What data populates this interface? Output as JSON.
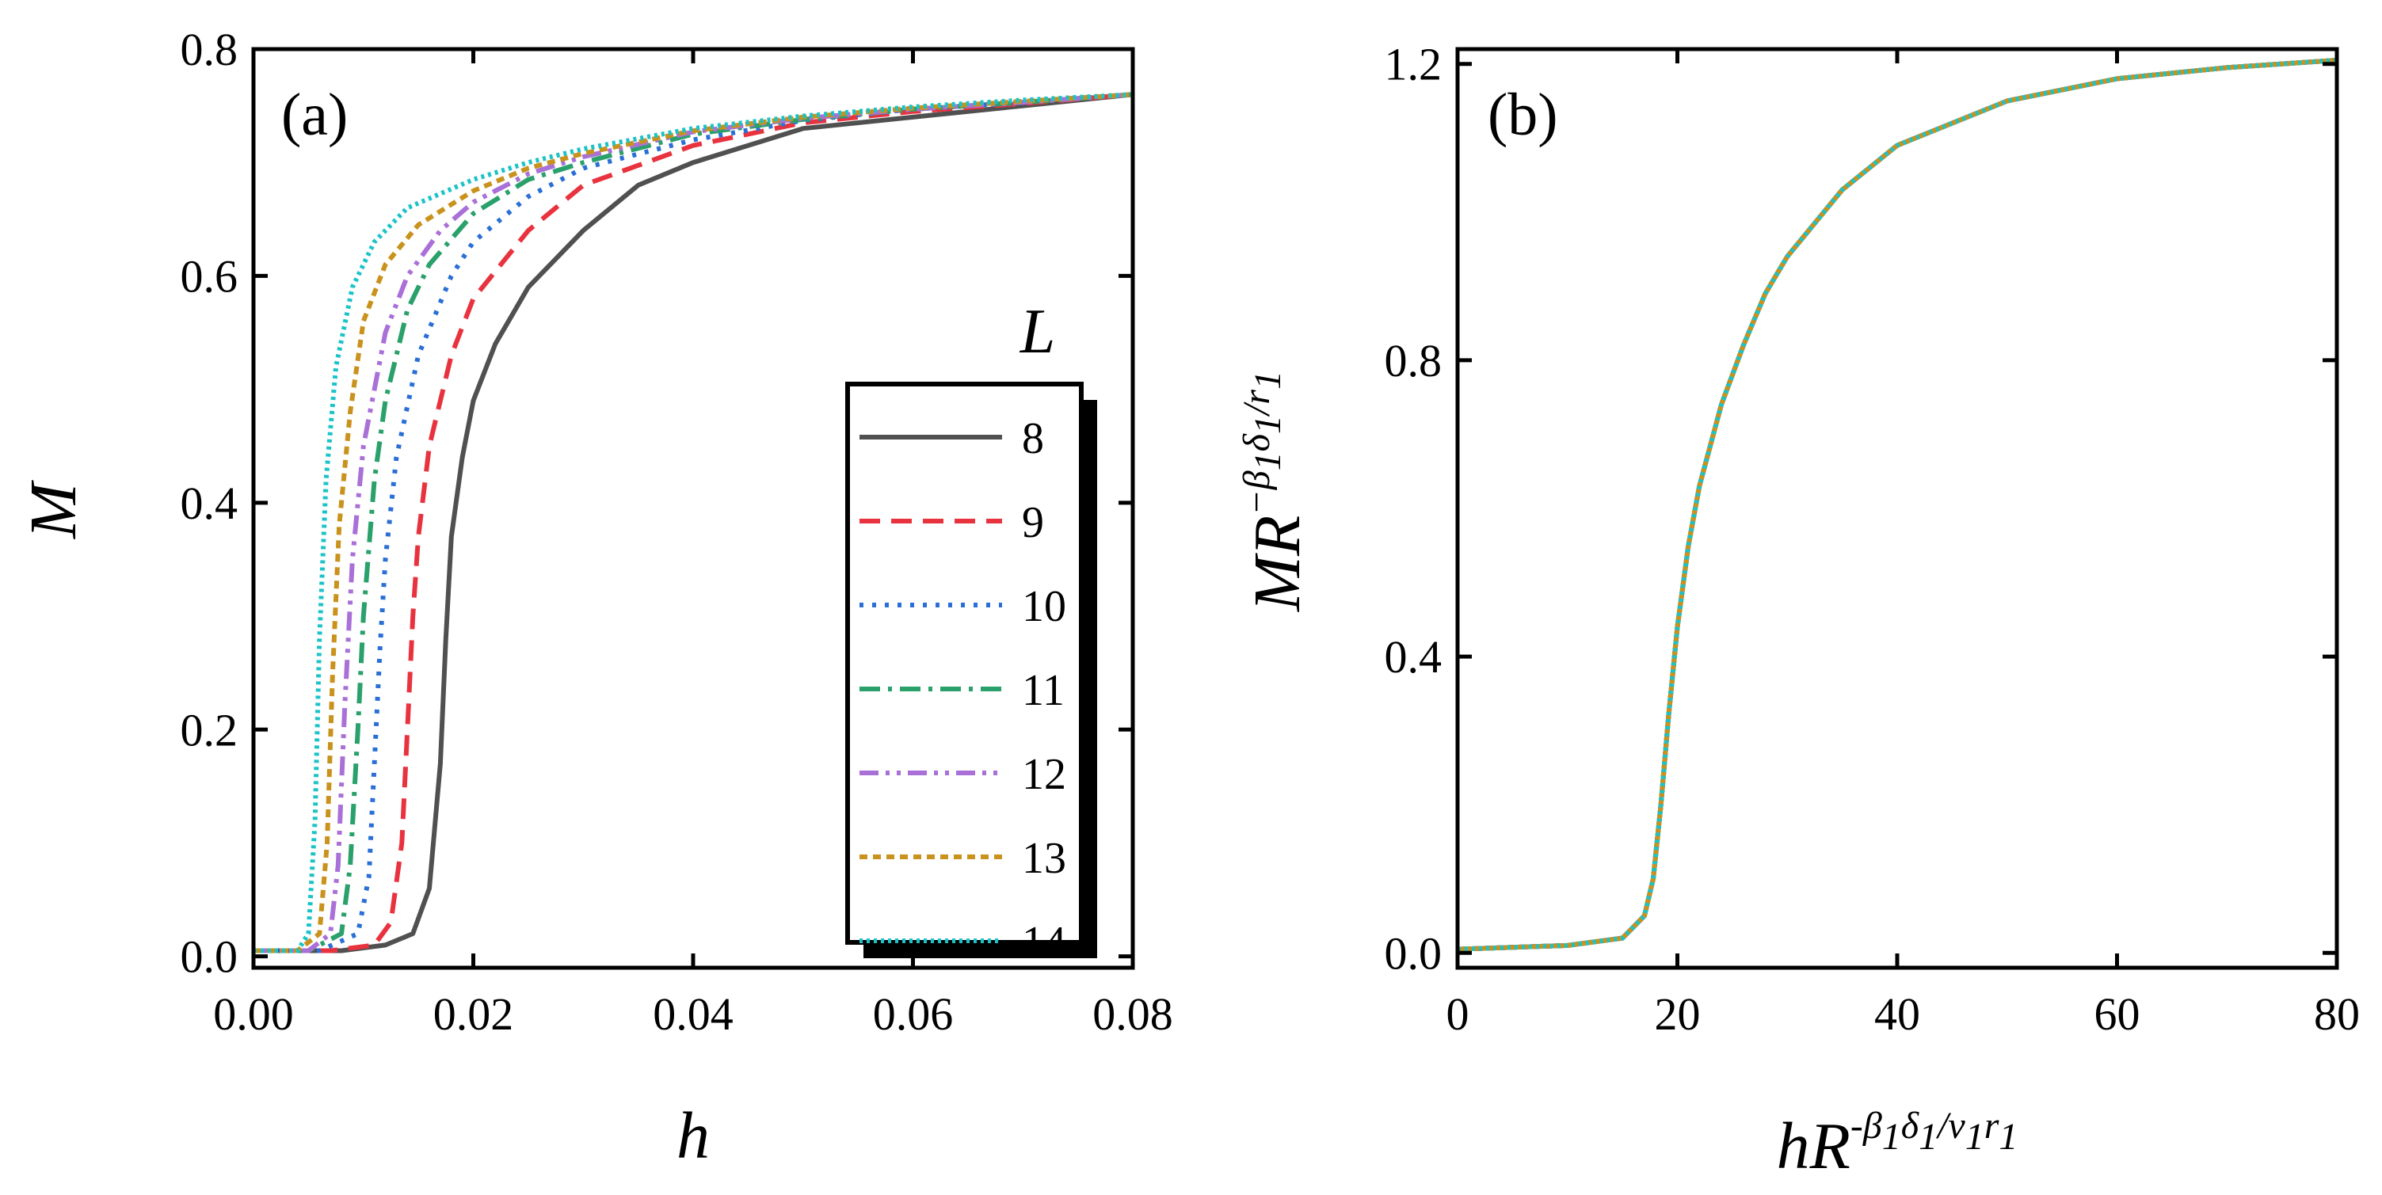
{
  "chart_data": [
    {
      "type": "line",
      "panel_label": "(a)",
      "xlabel": "h",
      "ylabel": "M",
      "xlim": [
        0.0,
        0.08
      ],
      "ylim": [
        -0.01,
        0.8
      ],
      "xticks": [
        "0.00",
        "0.02",
        "0.04",
        "0.06",
        "0.08"
      ],
      "yticks": [
        "0.0",
        "0.2",
        "0.4",
        "0.6",
        "0.8"
      ],
      "grid": false,
      "legend_title": "L",
      "legend_position": "right",
      "series": [
        {
          "name": "8",
          "color": "#505050",
          "style": "solid",
          "x": [
            0.0,
            0.008,
            0.012,
            0.0145,
            0.016,
            0.017,
            0.0175,
            0.018,
            0.019,
            0.02,
            0.022,
            0.025,
            0.03,
            0.035,
            0.04,
            0.05,
            0.06,
            0.07,
            0.08
          ],
          "y": [
            0.005,
            0.005,
            0.01,
            0.02,
            0.06,
            0.17,
            0.28,
            0.37,
            0.44,
            0.49,
            0.54,
            0.59,
            0.64,
            0.68,
            0.7,
            0.73,
            0.74,
            0.75,
            0.76
          ]
        },
        {
          "name": "9",
          "color": "#e8333f",
          "style": "dash",
          "x": [
            0.0,
            0.007,
            0.011,
            0.0125,
            0.0135,
            0.014,
            0.0145,
            0.015,
            0.016,
            0.018,
            0.02,
            0.025,
            0.03,
            0.04,
            0.05,
            0.06,
            0.07,
            0.08
          ],
          "y": [
            0.005,
            0.005,
            0.01,
            0.03,
            0.1,
            0.2,
            0.3,
            0.37,
            0.45,
            0.53,
            0.58,
            0.64,
            0.68,
            0.715,
            0.735,
            0.745,
            0.752,
            0.76
          ]
        },
        {
          "name": "10",
          "color": "#2a6fd6",
          "style": "dot",
          "x": [
            0.0,
            0.006,
            0.0095,
            0.0105,
            0.011,
            0.0115,
            0.012,
            0.013,
            0.015,
            0.018,
            0.02,
            0.025,
            0.03,
            0.04,
            0.05,
            0.06,
            0.07,
            0.08
          ],
          "y": [
            0.005,
            0.005,
            0.02,
            0.07,
            0.17,
            0.27,
            0.35,
            0.44,
            0.53,
            0.6,
            0.63,
            0.67,
            0.695,
            0.72,
            0.737,
            0.747,
            0.753,
            0.76
          ]
        },
        {
          "name": "11",
          "color": "#2aa06a",
          "style": "dashdot",
          "x": [
            0.0,
            0.005,
            0.008,
            0.0088,
            0.0095,
            0.01,
            0.011,
            0.012,
            0.014,
            0.016,
            0.02,
            0.025,
            0.03,
            0.04,
            0.05,
            0.06,
            0.07,
            0.08
          ],
          "y": [
            0.005,
            0.005,
            0.02,
            0.08,
            0.2,
            0.3,
            0.42,
            0.49,
            0.57,
            0.61,
            0.655,
            0.685,
            0.7,
            0.725,
            0.738,
            0.747,
            0.753,
            0.76
          ]
        },
        {
          "name": "12",
          "color": "#a970d8",
          "style": "dashdotdot",
          "x": [
            0.0,
            0.005,
            0.007,
            0.0077,
            0.0083,
            0.009,
            0.01,
            0.012,
            0.014,
            0.017,
            0.02,
            0.025,
            0.03,
            0.04,
            0.05,
            0.06,
            0.07,
            0.08
          ],
          "y": [
            0.005,
            0.005,
            0.02,
            0.08,
            0.22,
            0.35,
            0.45,
            0.55,
            0.6,
            0.64,
            0.665,
            0.69,
            0.705,
            0.727,
            0.739,
            0.747,
            0.753,
            0.76
          ]
        },
        {
          "name": "13",
          "color": "#c8921c",
          "style": "shortdash",
          "x": [
            0.0,
            0.004,
            0.006,
            0.0067,
            0.0072,
            0.0078,
            0.0088,
            0.01,
            0.012,
            0.015,
            0.02,
            0.025,
            0.03,
            0.04,
            0.05,
            0.06,
            0.07,
            0.08
          ],
          "y": [
            0.005,
            0.005,
            0.02,
            0.1,
            0.25,
            0.38,
            0.48,
            0.56,
            0.61,
            0.645,
            0.675,
            0.695,
            0.708,
            0.728,
            0.74,
            0.748,
            0.754,
            0.76
          ]
        },
        {
          "name": "14",
          "color": "#1bc3c8",
          "style": "shortdot",
          "x": [
            0.0,
            0.004,
            0.005,
            0.0056,
            0.006,
            0.0066,
            0.0075,
            0.009,
            0.011,
            0.014,
            0.02,
            0.025,
            0.03,
            0.04,
            0.05,
            0.06,
            0.07,
            0.08
          ],
          "y": [
            0.005,
            0.005,
            0.02,
            0.12,
            0.28,
            0.42,
            0.52,
            0.59,
            0.63,
            0.66,
            0.685,
            0.7,
            0.712,
            0.73,
            0.741,
            0.749,
            0.755,
            0.76
          ]
        }
      ]
    },
    {
      "type": "line",
      "panel_label": "(b)",
      "xlabel_parts": [
        {
          "t": "hR",
          "sup": false
        },
        {
          "t": "-β",
          "sup": true
        },
        {
          "t": "1",
          "sub": true
        },
        {
          "t": "δ",
          "sup": true
        },
        {
          "t": "1",
          "sub": true
        },
        {
          "t": "/ν",
          "sup": true
        },
        {
          "t": "1",
          "sub": true
        },
        {
          "t": "r",
          "sup": true
        },
        {
          "t": "1",
          "sub": true
        }
      ],
      "ylabel_parts": [
        {
          "t": "MR",
          "sup": false
        },
        {
          "t": "−β",
          "sup": true
        },
        {
          "t": "1",
          "sub": true
        },
        {
          "t": "δ",
          "sup": true
        },
        {
          "t": "1",
          "sub": true
        },
        {
          "t": "/r",
          "sup": true
        },
        {
          "t": "1",
          "sub": true
        }
      ],
      "xlim": [
        0,
        80
      ],
      "ylim": [
        -0.02,
        1.22
      ],
      "xticks": [
        "0",
        "20",
        "40",
        "60",
        "80"
      ],
      "yticks": [
        "0.0",
        "0.4",
        "0.8",
        "1.2"
      ],
      "grid": false,
      "series_colors": [
        "#505050",
        "#e8333f",
        "#2a6fd6",
        "#2aa06a",
        "#a970d8",
        "#c8921c",
        "#1bc3c8"
      ],
      "x": [
        0,
        10,
        15,
        17,
        17.8,
        18.5,
        19.2,
        20,
        21,
        22,
        24,
        26,
        28,
        30,
        35,
        40,
        50,
        60,
        70,
        80
      ],
      "y": [
        0.005,
        0.01,
        0.02,
        0.05,
        0.1,
        0.2,
        0.32,
        0.44,
        0.55,
        0.63,
        0.74,
        0.82,
        0.89,
        0.94,
        1.03,
        1.09,
        1.15,
        1.18,
        1.195,
        1.205
      ]
    }
  ]
}
